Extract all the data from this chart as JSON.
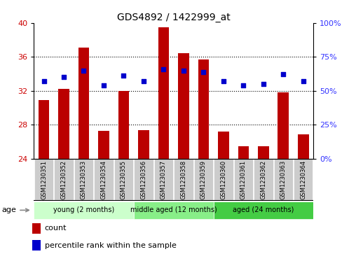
{
  "title": "GDS4892 / 1422999_at",
  "samples": [
    "GSM1230351",
    "GSM1230352",
    "GSM1230353",
    "GSM1230354",
    "GSM1230355",
    "GSM1230356",
    "GSM1230357",
    "GSM1230358",
    "GSM1230359",
    "GSM1230360",
    "GSM1230361",
    "GSM1230362",
    "GSM1230363",
    "GSM1230364"
  ],
  "counts": [
    30.9,
    32.2,
    37.1,
    27.3,
    32.0,
    27.4,
    39.5,
    36.4,
    35.7,
    27.2,
    25.5,
    25.5,
    31.8,
    26.9
  ],
  "percentiles": [
    57,
    60,
    65,
    54,
    61,
    57,
    66,
    65,
    64,
    57,
    54,
    55,
    62,
    57
  ],
  "ylim_left": [
    24,
    40
  ],
  "ylim_right": [
    0,
    100
  ],
  "yticks_left": [
    24,
    28,
    32,
    36,
    40
  ],
  "yticks_right": [
    0,
    25,
    50,
    75,
    100
  ],
  "bar_color": "#bb0000",
  "dot_color": "#0000cc",
  "bar_width": 0.55,
  "groups": [
    {
      "label": "young (2 months)",
      "start": 0,
      "end": 5,
      "color": "#ccffcc"
    },
    {
      "label": "middle aged (12 months)",
      "start": 5,
      "end": 9,
      "color": "#88ee88"
    },
    {
      "label": "aged (24 months)",
      "start": 9,
      "end": 14,
      "color": "#44cc44"
    }
  ],
  "age_label": "age",
  "legend_count_label": "count",
  "legend_percentile_label": "percentile rank within the sample",
  "bg_color": "#ffffff",
  "tick_label_color_left": "#cc0000",
  "tick_label_color_right": "#3333ff",
  "sample_bg_color": "#cccccc",
  "grid_yticks": [
    28,
    32,
    36
  ]
}
